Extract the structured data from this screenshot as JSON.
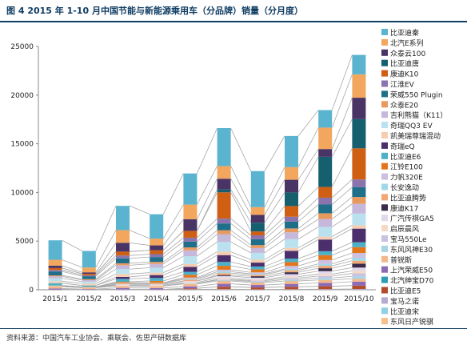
{
  "header": {
    "title": "图 4  2015 年 1-10 月中国节能与新能源乘用车（分品牌）销量（分月度）"
  },
  "footer": {
    "source": "资料来源：中国汽车工业协会、乘联会、佐思产研数据库"
  },
  "chart_data": {
    "type": "bar",
    "stacked": true,
    "categories": [
      "2015/1",
      "2015/2",
      "2015/3",
      "2015/4",
      "2015/5",
      "2015/6",
      "2015/7",
      "2015/8",
      "2015/9",
      "2015/10"
    ],
    "ylim": [
      0,
      25000
    ],
    "yticks": [
      0,
      5000,
      10000,
      15000,
      20000,
      25000
    ],
    "legend_position": "right",
    "series": [
      {
        "name": "东风日产锐骐",
        "color": "#f5c08c",
        "values": [
          0,
          0,
          0,
          0,
          0,
          0,
          0,
          0,
          0,
          0
        ]
      },
      {
        "name": "比亚迪宋",
        "color": "#8fd0e4",
        "values": [
          0,
          0,
          0,
          0,
          0,
          0,
          0,
          0,
          0,
          0
        ]
      },
      {
        "name": "宝马之诺",
        "color": "#b7aad0",
        "values": [
          30,
          20,
          40,
          30,
          50,
          60,
          40,
          50,
          60,
          80
        ]
      },
      {
        "name": "比亚迪E5",
        "color": "#b14d2a",
        "values": [
          0,
          0,
          0,
          0,
          100,
          250,
          200,
          250,
          300,
          350
        ]
      },
      {
        "name": "北汽绅宝D70",
        "color": "#2b9eb4",
        "values": [
          0,
          0,
          0,
          0,
          0,
          0,
          0,
          0,
          0,
          0
        ]
      },
      {
        "name": "上汽荣威E50",
        "color": "#8b6bb5",
        "values": [
          100,
          50,
          150,
          150,
          200,
          300,
          250,
          300,
          350,
          400
        ]
      },
      {
        "name": "普锐斯",
        "color": "#f2b88c",
        "values": [
          200,
          150,
          200,
          200,
          250,
          300,
          250,
          300,
          300,
          300
        ]
      },
      {
        "name": "东风风神E30",
        "color": "#a6d4e5",
        "values": [
          0,
          0,
          0,
          0,
          50,
          100,
          100,
          150,
          200,
          250
        ]
      },
      {
        "name": "宝马550Le",
        "color": "#c6c2df",
        "values": [
          0,
          0,
          0,
          0,
          0,
          50,
          100,
          150,
          200,
          300
        ]
      },
      {
        "name": "启辰晨风",
        "color": "#f4d9c6",
        "values": [
          50,
          30,
          80,
          80,
          100,
          150,
          100,
          150,
          200,
          250
        ]
      },
      {
        "name": "广汽传祺GA5",
        "color": "#e1d8ec",
        "values": [
          0,
          0,
          100,
          100,
          150,
          200,
          200,
          250,
          300,
          350
        ]
      },
      {
        "name": "康迪K17",
        "color": "#3a2b4a",
        "values": [
          0,
          0,
          0,
          0,
          0,
          100,
          150,
          200,
          300,
          400
        ]
      },
      {
        "name": "比亚迪腾势",
        "color": "#f1a772",
        "values": [
          50,
          40,
          100,
          100,
          150,
          200,
          150,
          200,
          250,
          300
        ]
      },
      {
        "name": "长安逸动",
        "color": "#9fd8e8",
        "values": [
          0,
          0,
          50,
          50,
          100,
          150,
          100,
          150,
          200,
          300
        ]
      },
      {
        "name": "力帆320E",
        "color": "#cdbfe0",
        "values": [
          0,
          0,
          0,
          0,
          100,
          200,
          150,
          300,
          400,
          500
        ]
      },
      {
        "name": "江铃E100",
        "color": "#e3761b",
        "values": [
          0,
          0,
          100,
          200,
          300,
          400,
          300,
          400,
          500,
          600
        ]
      },
      {
        "name": "比亚迪E6",
        "color": "#4bb0c8",
        "values": [
          250,
          150,
          300,
          300,
          300,
          400,
          300,
          350,
          400,
          500
        ]
      },
      {
        "name": "奇瑞eQ",
        "color": "#4b2f6c",
        "values": [
          0,
          0,
          200,
          300,
          500,
          700,
          400,
          800,
          1200,
          1400
        ]
      },
      {
        "name": "凯美瑞尊瑞混动",
        "color": "#f6cdb1",
        "values": [
          200,
          200,
          300,
          250,
          300,
          350,
          300,
          300,
          300,
          350
        ]
      },
      {
        "name": "奇瑞QQ3 EV",
        "color": "#b9e2ee",
        "values": [
          300,
          200,
          500,
          500,
          800,
          1000,
          700,
          900,
          1000,
          1200
        ]
      },
      {
        "name": "吉利熊猫（K11）",
        "color": "#c5b8da",
        "values": [
          200,
          150,
          400,
          400,
          600,
          800,
          500,
          700,
          800,
          1000
        ]
      },
      {
        "name": "众泰E20",
        "color": "#e89a5e",
        "values": [
          100,
          100,
          200,
          200,
          300,
          400,
          300,
          400,
          600,
          700
        ]
      },
      {
        "name": "荣威550 Plugin",
        "color": "#1f6f8b",
        "values": [
          400,
          300,
          500,
          500,
          600,
          700,
          600,
          700,
          900,
          1000
        ]
      },
      {
        "name": "江淮EV",
        "color": "#8a74ad",
        "values": [
          150,
          100,
          300,
          300,
          400,
          500,
          400,
          500,
          700,
          800
        ]
      },
      {
        "name": "康迪K10",
        "color": "#cf5f13",
        "values": [
          200,
          150,
          400,
          400,
          700,
          2700,
          400,
          1100,
          1100,
          3200
        ]
      },
      {
        "name": "比亚迪唐",
        "color": "#165f6e",
        "values": [
          0,
          0,
          0,
          0,
          0,
          300,
          900,
          1400,
          3100,
          3000
        ]
      },
      {
        "name": "众泰云100",
        "color": "#4a3466",
        "values": [
          250,
          150,
          900,
          500,
          1200,
          1100,
          800,
          1300,
          800,
          2200
        ]
      },
      {
        "name": "北汽E系列",
        "color": "#f2a65e",
        "values": [
          600,
          500,
          1300,
          700,
          1500,
          1300,
          800,
          1300,
          2200,
          2400
        ]
      },
      {
        "name": "比亚迪秦",
        "color": "#5ab4cf",
        "values": [
          2000,
          1700,
          2500,
          2500,
          3200,
          3900,
          3700,
          3200,
          1800,
          2000
        ]
      }
    ],
    "legend_order": [
      "比亚迪秦",
      "北汽E系列",
      "众泰云100",
      "比亚迪唐",
      "康迪K10",
      "江淮EV",
      "荣威550 Plugin",
      "众泰E20",
      "吉利熊猫（K11）",
      "奇瑞QQ3 EV",
      "凯美瑞尊瑞混动",
      "奇瑞eQ",
      "比亚迪E6",
      "江铃E100",
      "力帆320E",
      "长安逸动",
      "比亚迪腾势",
      "康迪K17",
      "广汽传祺GA5",
      "启辰晨风",
      "宝马550Le",
      "东风风神E30",
      "普锐斯",
      "上汽荣威E50",
      "北汽绅宝D70",
      "比亚迪E5",
      "宝马之诺",
      "比亚迪宋",
      "东风日产锐骐"
    ]
  }
}
